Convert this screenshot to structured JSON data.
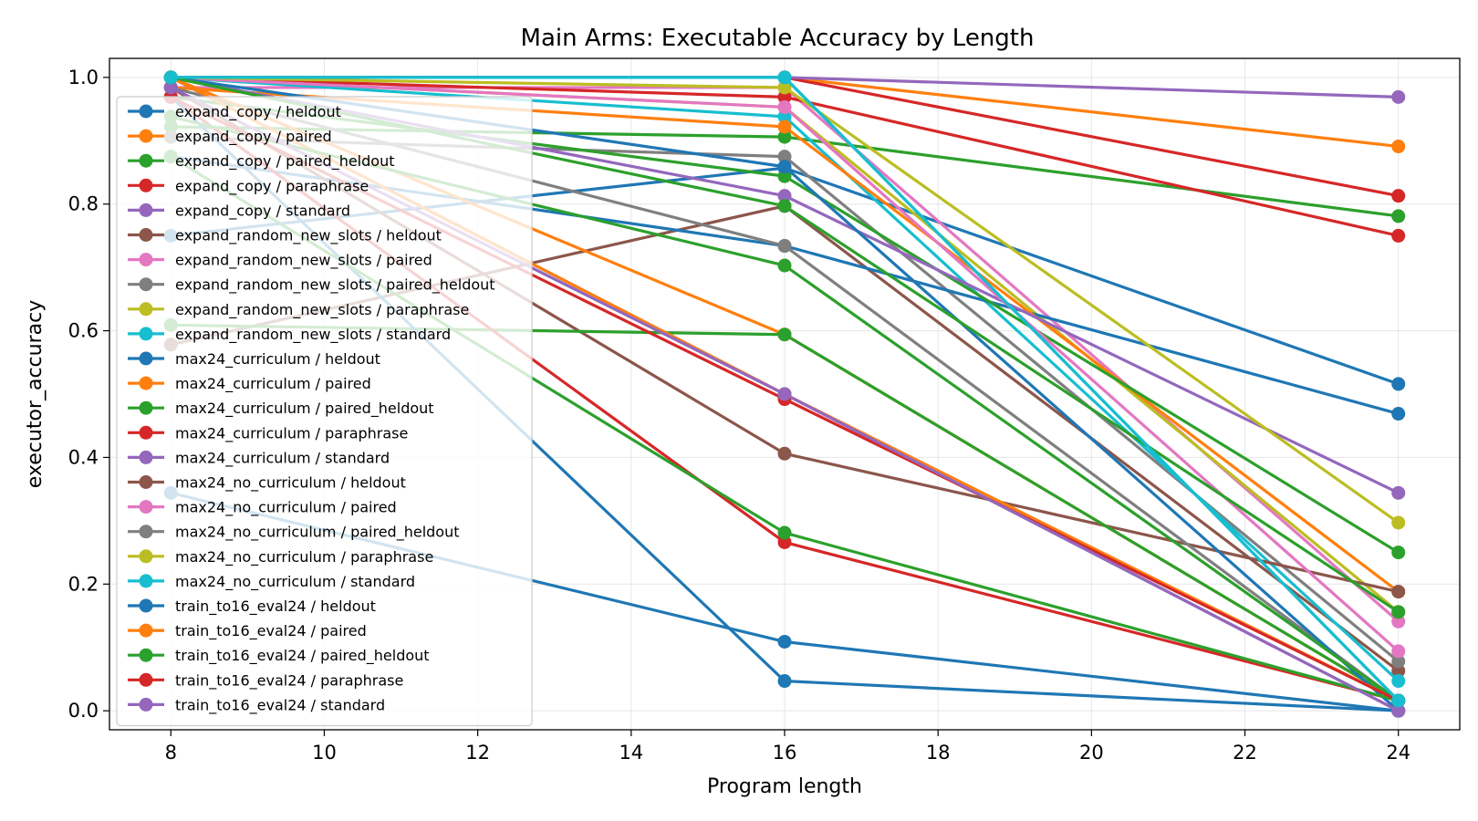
{
  "chart_data": {
    "type": "line",
    "title": "Main Arms: Executable Accuracy by Length",
    "xlabel": "Program length",
    "ylabel": "executor_accuracy",
    "x": [
      8,
      16,
      24
    ],
    "xlim": [
      7.2,
      24.8
    ],
    "ylim": [
      -0.03,
      1.03
    ],
    "xticks": [
      "8",
      "10",
      "12",
      "14",
      "16",
      "18",
      "20",
      "22",
      "24"
    ],
    "yticks": [
      "0.0",
      "0.2",
      "0.4",
      "0.6",
      "0.8",
      "1.0"
    ],
    "grid": true,
    "legend_position": "upper-left",
    "series": [
      {
        "name": "expand_copy / heldout",
        "color": "#1f77b4",
        "values": [
          0.75,
          0.857,
          0.516
        ]
      },
      {
        "name": "expand_copy / paired",
        "color": "#ff7f0e",
        "values": [
          1.0,
          1.0,
          0.891
        ]
      },
      {
        "name": "expand_copy / paired_heldout",
        "color": "#2ca02c",
        "values": [
          0.922,
          0.906,
          0.781
        ]
      },
      {
        "name": "expand_copy / paraphrase",
        "color": "#d62728",
        "values": [
          1.0,
          1.0,
          0.813
        ]
      },
      {
        "name": "expand_copy / standard",
        "color": "#9467bd",
        "values": [
          1.0,
          1.0,
          0.969
        ]
      },
      {
        "name": "expand_random_new_slots / heldout",
        "color": "#8c564b",
        "values": [
          0.578,
          0.797,
          0.063
        ]
      },
      {
        "name": "expand_random_new_slots / paired",
        "color": "#e377c2",
        "values": [
          0.984,
          0.984,
          0.141
        ]
      },
      {
        "name": "expand_random_new_slots / paired_heldout",
        "color": "#7f7f7f",
        "values": [
          0.906,
          0.875,
          0.078
        ]
      },
      {
        "name": "expand_random_new_slots / paraphrase",
        "color": "#bcbd22",
        "values": [
          1.0,
          0.953,
          0.156
        ]
      },
      {
        "name": "expand_random_new_slots / standard",
        "color": "#17becf",
        "values": [
          1.0,
          0.938,
          0.047
        ]
      },
      {
        "name": "max24_curriculum / heldout",
        "color": "#1f77b4",
        "values": [
          0.875,
          0.734,
          0.469
        ]
      },
      {
        "name": "max24_curriculum / paired",
        "color": "#ff7f0e",
        "values": [
          0.984,
          0.922,
          0.188
        ]
      },
      {
        "name": "max24_curriculum / paired_heldout",
        "color": "#2ca02c",
        "values": [
          0.969,
          0.844,
          0.25
        ]
      },
      {
        "name": "max24_curriculum / paraphrase",
        "color": "#d62728",
        "values": [
          1.0,
          0.969,
          0.75
        ]
      },
      {
        "name": "max24_curriculum / standard",
        "color": "#9467bd",
        "values": [
          1.0,
          0.813,
          0.344
        ]
      },
      {
        "name": "max24_no_curriculum / heldout",
        "color": "#8c564b",
        "values": [
          0.984,
          0.406,
          0.188
        ]
      },
      {
        "name": "max24_no_curriculum / paired",
        "color": "#e377c2",
        "values": [
          1.0,
          0.953,
          0.094
        ]
      },
      {
        "name": "max24_no_curriculum / paired_heldout",
        "color": "#7f7f7f",
        "values": [
          0.984,
          0.734,
          0.016
        ]
      },
      {
        "name": "max24_no_curriculum / paraphrase",
        "color": "#bcbd22",
        "values": [
          1.0,
          0.984,
          0.297
        ]
      },
      {
        "name": "max24_no_curriculum / standard",
        "color": "#17becf",
        "values": [
          1.0,
          1.0,
          0.016
        ]
      },
      {
        "name": "train_to16_eval24 / heldout",
        "color": "#1f77b4",
        "values": [
          0.344,
          0.109,
          0.0
        ]
      },
      {
        "name": "train_to16_eval24 / paired",
        "color": "#ff7f0e",
        "values": [
          1.0,
          0.594,
          0.016
        ]
      },
      {
        "name": "train_to16_eval24 / paired_heldout",
        "color": "#2ca02c",
        "values": [
          0.609,
          0.594,
          0.016
        ]
      },
      {
        "name": "train_to16_eval24 / paraphrase",
        "color": "#d62728",
        "values": [
          0.969,
          0.266,
          0.016
        ]
      },
      {
        "name": "train_to16_eval24 / standard",
        "color": "#9467bd",
        "values": [
          1.0,
          0.5,
          0.0
        ]
      },
      {
        "name": "",
        "color": "#1f77b4",
        "values": [
          0.969,
          0.047,
          0.0
        ]
      },
      {
        "name": "",
        "color": "#1f77b4",
        "values": [
          1.0,
          0.859,
          0.0
        ]
      },
      {
        "name": "",
        "color": "#ff7f0e",
        "values": [
          1.0,
          0.5,
          0.016
        ]
      },
      {
        "name": "",
        "color": "#2ca02c",
        "values": [
          0.875,
          0.281,
          0.016
        ]
      },
      {
        "name": "",
        "color": "#2ca02c",
        "values": [
          0.938,
          0.703,
          0.016
        ]
      },
      {
        "name": "",
        "color": "#d62728",
        "values": [
          0.969,
          0.492,
          0.016
        ]
      },
      {
        "name": "",
        "color": "#9467bd",
        "values": [
          0.984,
          0.5,
          0.0
        ]
      },
      {
        "name": "",
        "color": "#2ca02c",
        "values": [
          1.0,
          0.797,
          0.156
        ]
      },
      {
        "name": "",
        "color": "#17becf",
        "values": [
          1.0,
          1.0,
          0.016
        ]
      }
    ]
  }
}
